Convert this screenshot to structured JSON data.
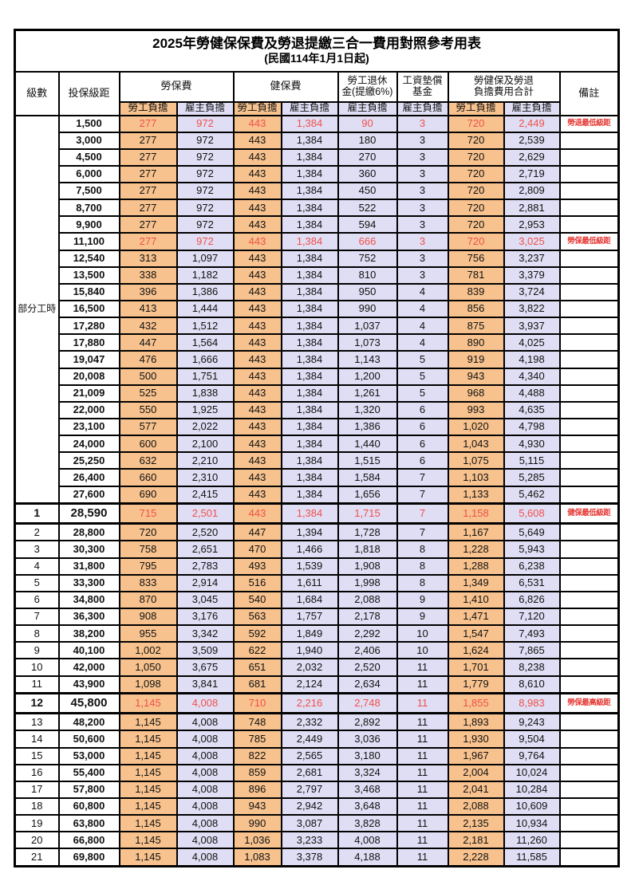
{
  "title": "2025年勞健保保費及勞退提繳三合一費用對照參考用表",
  "subtitle": "(民國114年1月1日起)",
  "header": {
    "level": "級數",
    "salary": "投保級距",
    "labor": "勞保費",
    "health": "健保費",
    "pension": "勞工退休\n金(提繳6%)",
    "wage_fund": "工資墊償\n基金",
    "total": "勞健保及勞退\n負擔費用合計",
    "remark": "備註",
    "employee": "勞工負擔",
    "employer": "雇主負擔"
  },
  "part_time_label": "部分工時",
  "part_time_row_count": 23,
  "colors": {
    "employee_column_bg": "#F7C28E",
    "employer_column_bg": "#E0DEF4",
    "highlight_text": "#F0504A",
    "remark_text": "#E53935"
  },
  "rows": [
    {
      "level": "",
      "salary": "1,500",
      "labor_emp": "277",
      "labor_er": "972",
      "health_emp": "443",
      "health_er": "1,384",
      "pension_er": "90",
      "fund_er": "3",
      "total_emp": "720",
      "total_er": "2,449",
      "remark": "勞退最低級距",
      "highlight": true,
      "emphasis": false
    },
    {
      "level": "",
      "salary": "3,000",
      "labor_emp": "277",
      "labor_er": "972",
      "health_emp": "443",
      "health_er": "1,384",
      "pension_er": "180",
      "fund_er": "3",
      "total_emp": "720",
      "total_er": "2,539",
      "remark": "",
      "highlight": false,
      "emphasis": false
    },
    {
      "level": "",
      "salary": "4,500",
      "labor_emp": "277",
      "labor_er": "972",
      "health_emp": "443",
      "health_er": "1,384",
      "pension_er": "270",
      "fund_er": "3",
      "total_emp": "720",
      "total_er": "2,629",
      "remark": "",
      "highlight": false,
      "emphasis": false
    },
    {
      "level": "",
      "salary": "6,000",
      "labor_emp": "277",
      "labor_er": "972",
      "health_emp": "443",
      "health_er": "1,384",
      "pension_er": "360",
      "fund_er": "3",
      "total_emp": "720",
      "total_er": "2,719",
      "remark": "",
      "highlight": false,
      "emphasis": false
    },
    {
      "level": "",
      "salary": "7,500",
      "labor_emp": "277",
      "labor_er": "972",
      "health_emp": "443",
      "health_er": "1,384",
      "pension_er": "450",
      "fund_er": "3",
      "total_emp": "720",
      "total_er": "2,809",
      "remark": "",
      "highlight": false,
      "emphasis": false
    },
    {
      "level": "",
      "salary": "8,700",
      "labor_emp": "277",
      "labor_er": "972",
      "health_emp": "443",
      "health_er": "1,384",
      "pension_er": "522",
      "fund_er": "3",
      "total_emp": "720",
      "total_er": "2,881",
      "remark": "",
      "highlight": false,
      "emphasis": false
    },
    {
      "level": "",
      "salary": "9,900",
      "labor_emp": "277",
      "labor_er": "972",
      "health_emp": "443",
      "health_er": "1,384",
      "pension_er": "594",
      "fund_er": "3",
      "total_emp": "720",
      "total_er": "2,953",
      "remark": "",
      "highlight": false,
      "emphasis": false
    },
    {
      "level": "",
      "salary": "11,100",
      "labor_emp": "277",
      "labor_er": "972",
      "health_emp": "443",
      "health_er": "1,384",
      "pension_er": "666",
      "fund_er": "3",
      "total_emp": "720",
      "total_er": "3,025",
      "remark": "勞保最低級距",
      "highlight": true,
      "emphasis": false
    },
    {
      "level": "",
      "salary": "12,540",
      "labor_emp": "313",
      "labor_er": "1,097",
      "health_emp": "443",
      "health_er": "1,384",
      "pension_er": "752",
      "fund_er": "3",
      "total_emp": "756",
      "total_er": "3,237",
      "remark": "",
      "highlight": false,
      "emphasis": false
    },
    {
      "level": "",
      "salary": "13,500",
      "labor_emp": "338",
      "labor_er": "1,182",
      "health_emp": "443",
      "health_er": "1,384",
      "pension_er": "810",
      "fund_er": "3",
      "total_emp": "781",
      "total_er": "3,379",
      "remark": "",
      "highlight": false,
      "emphasis": false
    },
    {
      "level": "",
      "salary": "15,840",
      "labor_emp": "396",
      "labor_er": "1,386",
      "health_emp": "443",
      "health_er": "1,384",
      "pension_er": "950",
      "fund_er": "4",
      "total_emp": "839",
      "total_er": "3,724",
      "remark": "",
      "highlight": false,
      "emphasis": false
    },
    {
      "level": "",
      "salary": "16,500",
      "labor_emp": "413",
      "labor_er": "1,444",
      "health_emp": "443",
      "health_er": "1,384",
      "pension_er": "990",
      "fund_er": "4",
      "total_emp": "856",
      "total_er": "3,822",
      "remark": "",
      "highlight": false,
      "emphasis": false
    },
    {
      "level": "",
      "salary": "17,280",
      "labor_emp": "432",
      "labor_er": "1,512",
      "health_emp": "443",
      "health_er": "1,384",
      "pension_er": "1,037",
      "fund_er": "4",
      "total_emp": "875",
      "total_er": "3,937",
      "remark": "",
      "highlight": false,
      "emphasis": false
    },
    {
      "level": "",
      "salary": "17,880",
      "labor_emp": "447",
      "labor_er": "1,564",
      "health_emp": "443",
      "health_er": "1,384",
      "pension_er": "1,073",
      "fund_er": "4",
      "total_emp": "890",
      "total_er": "4,025",
      "remark": "",
      "highlight": false,
      "emphasis": false
    },
    {
      "level": "",
      "salary": "19,047",
      "labor_emp": "476",
      "labor_er": "1,666",
      "health_emp": "443",
      "health_er": "1,384",
      "pension_er": "1,143",
      "fund_er": "5",
      "total_emp": "919",
      "total_er": "4,198",
      "remark": "",
      "highlight": false,
      "emphasis": false
    },
    {
      "level": "",
      "salary": "20,008",
      "labor_emp": "500",
      "labor_er": "1,751",
      "health_emp": "443",
      "health_er": "1,384",
      "pension_er": "1,200",
      "fund_er": "5",
      "total_emp": "943",
      "total_er": "4,340",
      "remark": "",
      "highlight": false,
      "emphasis": false
    },
    {
      "level": "",
      "salary": "21,009",
      "labor_emp": "525",
      "labor_er": "1,838",
      "health_emp": "443",
      "health_er": "1,384",
      "pension_er": "1,261",
      "fund_er": "5",
      "total_emp": "968",
      "total_er": "4,488",
      "remark": "",
      "highlight": false,
      "emphasis": false
    },
    {
      "level": "",
      "salary": "22,000",
      "labor_emp": "550",
      "labor_er": "1,925",
      "health_emp": "443",
      "health_er": "1,384",
      "pension_er": "1,320",
      "fund_er": "6",
      "total_emp": "993",
      "total_er": "4,635",
      "remark": "",
      "highlight": false,
      "emphasis": false
    },
    {
      "level": "",
      "salary": "23,100",
      "labor_emp": "577",
      "labor_er": "2,022",
      "health_emp": "443",
      "health_er": "1,384",
      "pension_er": "1,386",
      "fund_er": "6",
      "total_emp": "1,020",
      "total_er": "4,798",
      "remark": "",
      "highlight": false,
      "emphasis": false
    },
    {
      "level": "",
      "salary": "24,000",
      "labor_emp": "600",
      "labor_er": "2,100",
      "health_emp": "443",
      "health_er": "1,384",
      "pension_er": "1,440",
      "fund_er": "6",
      "total_emp": "1,043",
      "total_er": "4,930",
      "remark": "",
      "highlight": false,
      "emphasis": false
    },
    {
      "level": "",
      "salary": "25,250",
      "labor_emp": "632",
      "labor_er": "2,210",
      "health_emp": "443",
      "health_er": "1,384",
      "pension_er": "1,515",
      "fund_er": "6",
      "total_emp": "1,075",
      "total_er": "5,115",
      "remark": "",
      "highlight": false,
      "emphasis": false
    },
    {
      "level": "",
      "salary": "26,400",
      "labor_emp": "660",
      "labor_er": "2,310",
      "health_emp": "443",
      "health_er": "1,384",
      "pension_er": "1,584",
      "fund_er": "7",
      "total_emp": "1,103",
      "total_er": "5,285",
      "remark": "",
      "highlight": false,
      "emphasis": false
    },
    {
      "level": "",
      "salary": "27,600",
      "labor_emp": "690",
      "labor_er": "2,415",
      "health_emp": "443",
      "health_er": "1,384",
      "pension_er": "1,656",
      "fund_er": "7",
      "total_emp": "1,133",
      "total_er": "5,462",
      "remark": "",
      "highlight": false,
      "emphasis": false
    },
    {
      "level": "1",
      "salary": "28,590",
      "labor_emp": "715",
      "labor_er": "2,501",
      "health_emp": "443",
      "health_er": "1,384",
      "pension_er": "1,715",
      "fund_er": "7",
      "total_emp": "1,158",
      "total_er": "5,608",
      "remark": "健保最低級距",
      "highlight": true,
      "emphasis": true
    },
    {
      "level": "2",
      "salary": "28,800",
      "labor_emp": "720",
      "labor_er": "2,520",
      "health_emp": "447",
      "health_er": "1,394",
      "pension_er": "1,728",
      "fund_er": "7",
      "total_emp": "1,167",
      "total_er": "5,649",
      "remark": "",
      "highlight": false,
      "emphasis": false
    },
    {
      "level": "3",
      "salary": "30,300",
      "labor_emp": "758",
      "labor_er": "2,651",
      "health_emp": "470",
      "health_er": "1,466",
      "pension_er": "1,818",
      "fund_er": "8",
      "total_emp": "1,228",
      "total_er": "5,943",
      "remark": "",
      "highlight": false,
      "emphasis": false
    },
    {
      "level": "4",
      "salary": "31,800",
      "labor_emp": "795",
      "labor_er": "2,783",
      "health_emp": "493",
      "health_er": "1,539",
      "pension_er": "1,908",
      "fund_er": "8",
      "total_emp": "1,288",
      "total_er": "6,238",
      "remark": "",
      "highlight": false,
      "emphasis": false
    },
    {
      "level": "5",
      "salary": "33,300",
      "labor_emp": "833",
      "labor_er": "2,914",
      "health_emp": "516",
      "health_er": "1,611",
      "pension_er": "1,998",
      "fund_er": "8",
      "total_emp": "1,349",
      "total_er": "6,531",
      "remark": "",
      "highlight": false,
      "emphasis": false
    },
    {
      "level": "6",
      "salary": "34,800",
      "labor_emp": "870",
      "labor_er": "3,045",
      "health_emp": "540",
      "health_er": "1,684",
      "pension_er": "2,088",
      "fund_er": "9",
      "total_emp": "1,410",
      "total_er": "6,826",
      "remark": "",
      "highlight": false,
      "emphasis": false
    },
    {
      "level": "7",
      "salary": "36,300",
      "labor_emp": "908",
      "labor_er": "3,176",
      "health_emp": "563",
      "health_er": "1,757",
      "pension_er": "2,178",
      "fund_er": "9",
      "total_emp": "1,471",
      "total_er": "7,120",
      "remark": "",
      "highlight": false,
      "emphasis": false
    },
    {
      "level": "8",
      "salary": "38,200",
      "labor_emp": "955",
      "labor_er": "3,342",
      "health_emp": "592",
      "health_er": "1,849",
      "pension_er": "2,292",
      "fund_er": "10",
      "total_emp": "1,547",
      "total_er": "7,493",
      "remark": "",
      "highlight": false,
      "emphasis": false
    },
    {
      "level": "9",
      "salary": "40,100",
      "labor_emp": "1,002",
      "labor_er": "3,509",
      "health_emp": "622",
      "health_er": "1,940",
      "pension_er": "2,406",
      "fund_er": "10",
      "total_emp": "1,624",
      "total_er": "7,865",
      "remark": "",
      "highlight": false,
      "emphasis": false
    },
    {
      "level": "10",
      "salary": "42,000",
      "labor_emp": "1,050",
      "labor_er": "3,675",
      "health_emp": "651",
      "health_er": "2,032",
      "pension_er": "2,520",
      "fund_er": "11",
      "total_emp": "1,701",
      "total_er": "8,238",
      "remark": "",
      "highlight": false,
      "emphasis": false
    },
    {
      "level": "11",
      "salary": "43,900",
      "labor_emp": "1,098",
      "labor_er": "3,841",
      "health_emp": "681",
      "health_er": "2,124",
      "pension_er": "2,634",
      "fund_er": "11",
      "total_emp": "1,779",
      "total_er": "8,610",
      "remark": "",
      "highlight": false,
      "emphasis": false
    },
    {
      "level": "12",
      "salary": "45,800",
      "labor_emp": "1,145",
      "labor_er": "4,008",
      "health_emp": "710",
      "health_er": "2,216",
      "pension_er": "2,748",
      "fund_er": "11",
      "total_emp": "1,855",
      "total_er": "8,983",
      "remark": "勞保最高級距",
      "highlight": true,
      "emphasis": true
    },
    {
      "level": "13",
      "salary": "48,200",
      "labor_emp": "1,145",
      "labor_er": "4,008",
      "health_emp": "748",
      "health_er": "2,332",
      "pension_er": "2,892",
      "fund_er": "11",
      "total_emp": "1,893",
      "total_er": "9,243",
      "remark": "",
      "highlight": false,
      "emphasis": false
    },
    {
      "level": "14",
      "salary": "50,600",
      "labor_emp": "1,145",
      "labor_er": "4,008",
      "health_emp": "785",
      "health_er": "2,449",
      "pension_er": "3,036",
      "fund_er": "11",
      "total_emp": "1,930",
      "total_er": "9,504",
      "remark": "",
      "highlight": false,
      "emphasis": false
    },
    {
      "level": "15",
      "salary": "53,000",
      "labor_emp": "1,145",
      "labor_er": "4,008",
      "health_emp": "822",
      "health_er": "2,565",
      "pension_er": "3,180",
      "fund_er": "11",
      "total_emp": "1,967",
      "total_er": "9,764",
      "remark": "",
      "highlight": false,
      "emphasis": false
    },
    {
      "level": "16",
      "salary": "55,400",
      "labor_emp": "1,145",
      "labor_er": "4,008",
      "health_emp": "859",
      "health_er": "2,681",
      "pension_er": "3,324",
      "fund_er": "11",
      "total_emp": "2,004",
      "total_er": "10,024",
      "remark": "",
      "highlight": false,
      "emphasis": false
    },
    {
      "level": "17",
      "salary": "57,800",
      "labor_emp": "1,145",
      "labor_er": "4,008",
      "health_emp": "896",
      "health_er": "2,797",
      "pension_er": "3,468",
      "fund_er": "11",
      "total_emp": "2,041",
      "total_er": "10,284",
      "remark": "",
      "highlight": false,
      "emphasis": false
    },
    {
      "level": "18",
      "salary": "60,800",
      "labor_emp": "1,145",
      "labor_er": "4,008",
      "health_emp": "943",
      "health_er": "2,942",
      "pension_er": "3,648",
      "fund_er": "11",
      "total_emp": "2,088",
      "total_er": "10,609",
      "remark": "",
      "highlight": false,
      "emphasis": false
    },
    {
      "level": "19",
      "salary": "63,800",
      "labor_emp": "1,145",
      "labor_er": "4,008",
      "health_emp": "990",
      "health_er": "3,087",
      "pension_er": "3,828",
      "fund_er": "11",
      "total_emp": "2,135",
      "total_er": "10,934",
      "remark": "",
      "highlight": false,
      "emphasis": false
    },
    {
      "level": "20",
      "salary": "66,800",
      "labor_emp": "1,145",
      "labor_er": "4,008",
      "health_emp": "1,036",
      "health_er": "3,233",
      "pension_er": "4,008",
      "fund_er": "11",
      "total_emp": "2,181",
      "total_er": "11,260",
      "remark": "",
      "highlight": false,
      "emphasis": false
    },
    {
      "level": "21",
      "salary": "69,800",
      "labor_emp": "1,145",
      "labor_er": "4,008",
      "health_emp": "1,083",
      "health_er": "3,378",
      "pension_er": "4,188",
      "fund_er": "11",
      "total_emp": "2,228",
      "total_er": "11,585",
      "remark": "",
      "highlight": false,
      "emphasis": false
    }
  ]
}
